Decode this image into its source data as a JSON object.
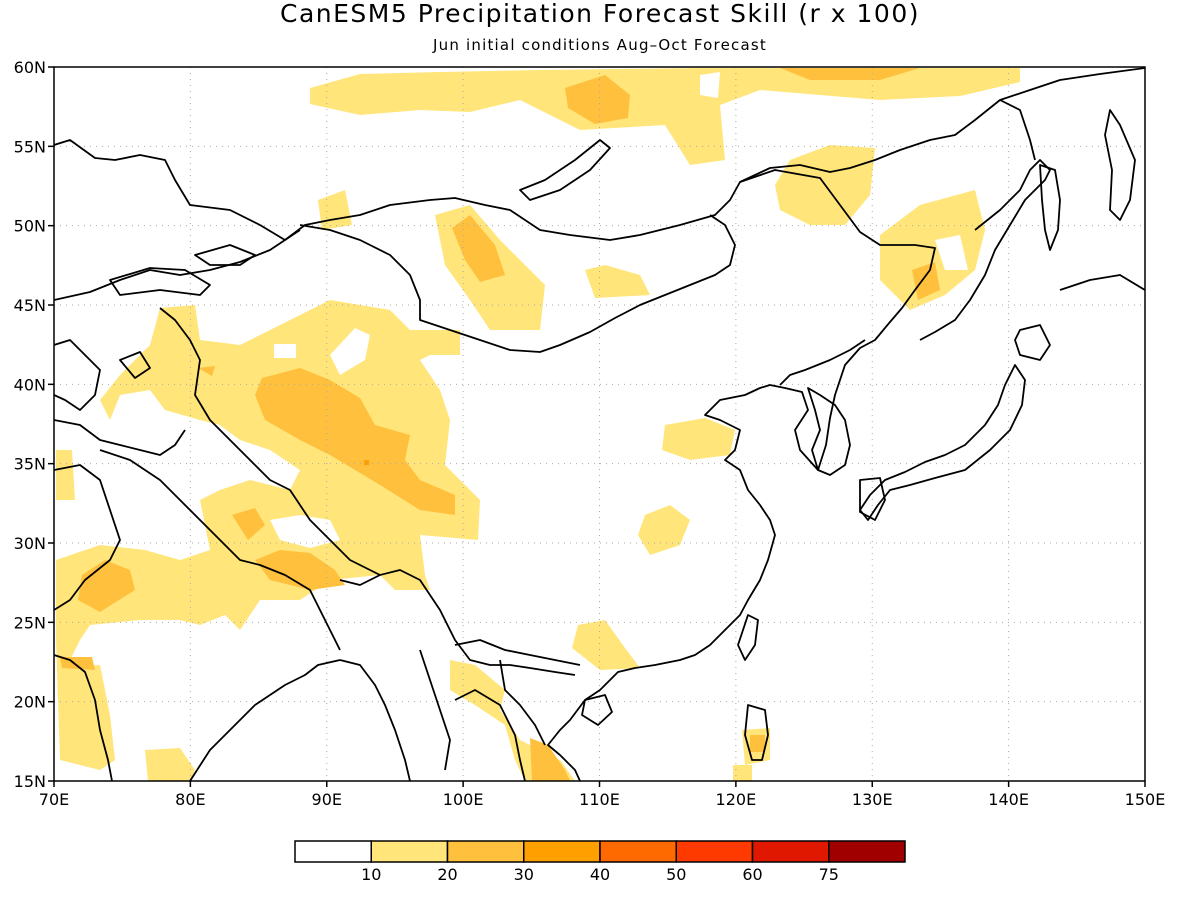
{
  "title": "CanESM5 Precipitation Forecast Skill (r x 100)",
  "subtitle": "Jun initial conditions  Aug–Oct Forecast",
  "map": {
    "lon_range": [
      70,
      150
    ],
    "lat_range": [
      15,
      60
    ],
    "lon_ticks": [
      "70E",
      "80E",
      "90E",
      "100E",
      "110E",
      "120E",
      "130E",
      "140E",
      "150E"
    ],
    "lat_ticks": [
      "15N",
      "20N",
      "25N",
      "30N",
      "35N",
      "40N",
      "45N",
      "50N",
      "55N",
      "60N"
    ],
    "gridlines": true,
    "coastlines": true,
    "skill_regions": [
      {
        "name": "north-siberia-band",
        "level": "10-20"
      },
      {
        "name": "lake-baikal-west",
        "level": "20-30"
      },
      {
        "name": "northern-mongolia",
        "level": "20-30"
      },
      {
        "name": "amur-region",
        "level": "10-20"
      },
      {
        "name": "sea-of-japan-coast",
        "level": "20-30"
      },
      {
        "name": "tarim-tibet-plateau",
        "level": "20-30"
      },
      {
        "name": "himalaya-south",
        "level": "20-30"
      },
      {
        "name": "arabian-sea-west-india",
        "level": "20-30"
      },
      {
        "name": "shandong",
        "level": "10-20"
      },
      {
        "name": "central-china",
        "level": "10-20"
      },
      {
        "name": "south-china",
        "level": "10-20"
      },
      {
        "name": "indochina",
        "level": "20-30"
      },
      {
        "name": "philippines-luzon",
        "level": "20-30"
      }
    ]
  },
  "colorbar": {
    "labels": [
      "10",
      "20",
      "30",
      "40",
      "50",
      "60",
      "75"
    ],
    "colors": [
      "#ffffff",
      "#ffe57a",
      "#ffc13d",
      "#ffa000",
      "#ff6a00",
      "#ff3a00",
      "#e01800",
      "#a00000"
    ]
  }
}
